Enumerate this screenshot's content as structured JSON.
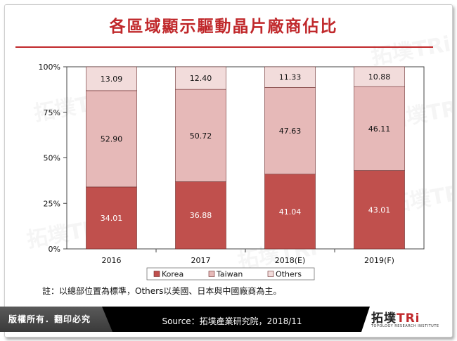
{
  "page": {
    "title": "各區域顯示驅動晶片廠商佔比",
    "note": "註：以總部位置為標準，Others以美國、日本與中國廠商為主。",
    "copyright": "版權所有．翻印必究",
    "source": "Source：拓墣產業研究院，2018/11",
    "logo_text": "拓墣",
    "logo_accent": "TRi",
    "logo_subtitle": "TOPOLOGY RESEARCH INSTITUTE"
  },
  "colors": {
    "title": "#c0282b",
    "korea": "#c0504d",
    "taiwan": "#e6b9b8",
    "others": "#f2dcdb"
  },
  "chart_data": {
    "type": "bar",
    "stacked": true,
    "categories": [
      "2016",
      "2017",
      "2018(E)",
      "2019(F)"
    ],
    "series": [
      {
        "name": "Korea",
        "values": [
          34.01,
          36.88,
          41.04,
          43.01
        ]
      },
      {
        "name": "Taiwan",
        "values": [
          52.9,
          50.72,
          47.63,
          46.11
        ]
      },
      {
        "name": "Others",
        "values": [
          13.09,
          12.4,
          11.33,
          10.88
        ]
      }
    ],
    "yticks": [
      "0%",
      "25%",
      "50%",
      "75%",
      "100%"
    ],
    "ylim": [
      0,
      100
    ],
    "legend_position": "bottom",
    "grid": false
  }
}
